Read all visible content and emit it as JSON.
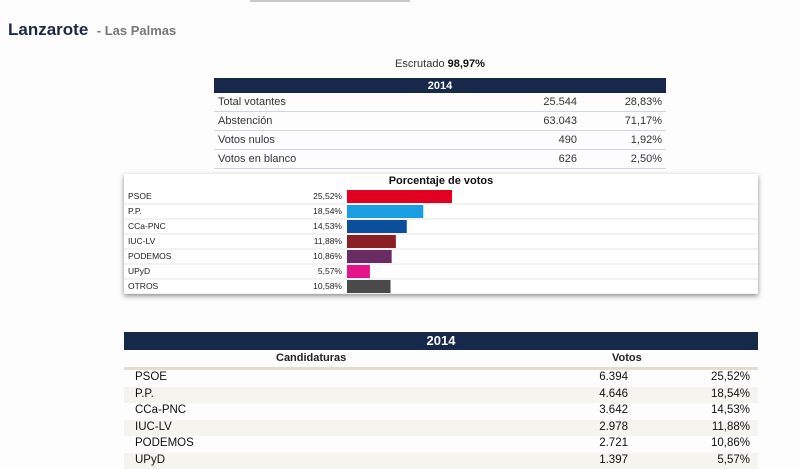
{
  "header": {
    "region": "Lanzarote",
    "province": "- Las Palmas"
  },
  "scrutiny": {
    "label": "Escrutado",
    "value": "98,97%"
  },
  "summary": {
    "year": "2014",
    "rows": [
      {
        "label": "Total votantes",
        "value": "25.544",
        "pct": "28,83%"
      },
      {
        "label": "Abstención",
        "value": "63.043",
        "pct": "71,17%"
      },
      {
        "label": "Votos nulos",
        "value": "490",
        "pct": "1,92%"
      },
      {
        "label": "Votos en blanco",
        "value": "626",
        "pct": "2,50%"
      }
    ]
  },
  "chart_data": {
    "type": "bar",
    "title": "Porcentaje de votos",
    "categories": [
      "PSOE",
      "P.P.",
      "CCa-PNC",
      "IUC-LV",
      "PODEMOS",
      "UPyD",
      "OTROS"
    ],
    "values": [
      25.52,
      18.54,
      14.53,
      11.88,
      10.86,
      5.57,
      10.58
    ],
    "value_labels": [
      "25,52%",
      "18,54%",
      "14,53%",
      "11,88%",
      "10,86%",
      "5,57%",
      "10,58%"
    ],
    "colors": [
      "#e1001f",
      "#1a9ee2",
      "#0b4e9e",
      "#8a1f24",
      "#6a2a62",
      "#e3148a",
      "#4a4a4a"
    ],
    "xlim": [
      0,
      25.52
    ],
    "grid": true,
    "legend": "none"
  },
  "results": {
    "year": "2014",
    "col_candidaturas": "Candidaturas",
    "col_votos": "Votos",
    "rows": [
      {
        "name": "PSOE",
        "votes": "6.394",
        "pct": "25,52%"
      },
      {
        "name": "P.P.",
        "votes": "4.646",
        "pct": "18,54%"
      },
      {
        "name": "CCa-PNC",
        "votes": "3.642",
        "pct": "14,53%"
      },
      {
        "name": "IUC-LV",
        "votes": "2.978",
        "pct": "11,88%"
      },
      {
        "name": "PODEMOS",
        "votes": "2.721",
        "pct": "10,86%"
      },
      {
        "name": "UPyD",
        "votes": "1.397",
        "pct": "5,57%"
      }
    ]
  }
}
